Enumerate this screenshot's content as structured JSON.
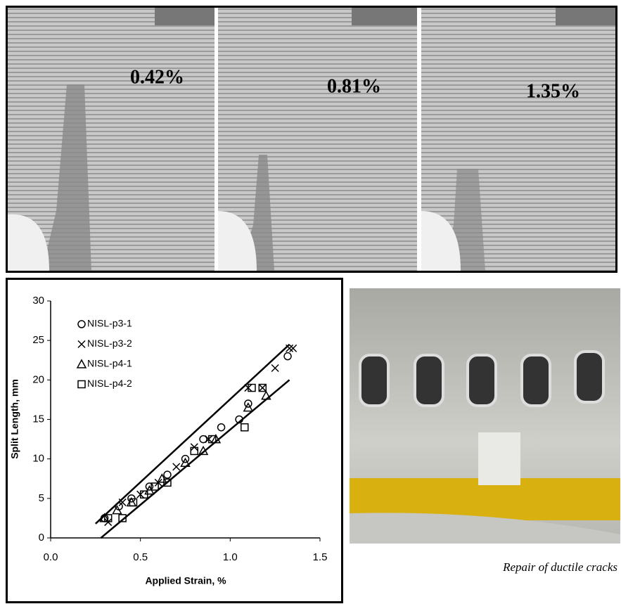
{
  "panels": {
    "labels": [
      "0.42%",
      "0.81%",
      "1.35%"
    ]
  },
  "caption": "Repair of ductile cracks",
  "chart_data": {
    "type": "scatter",
    "xlabel": "Applied Strain, %",
    "ylabel": "Split Length, mm",
    "xlim": [
      0,
      1.5
    ],
    "ylim": [
      0,
      30
    ],
    "xticks": [
      {
        "value": 0,
        "label": "0.0"
      },
      {
        "value": 0.5,
        "label": "0.5"
      },
      {
        "value": 1,
        "label": "1.0"
      },
      {
        "value": 1.5,
        "label": "1.5"
      }
    ],
    "yticks": [
      0,
      5,
      10,
      15,
      20,
      25,
      30
    ],
    "series": [
      {
        "name": "NISL-p3-1",
        "marker": "circle",
        "color": "#000000",
        "x": [
          0.3,
          0.38,
          0.45,
          0.55,
          0.65,
          0.75,
          0.85,
          0.95,
          1.05,
          1.1,
          1.32
        ],
        "values": [
          2.5,
          4,
          5,
          6.5,
          8,
          10,
          12.5,
          14,
          15,
          17,
          23
        ]
      },
      {
        "name": "NISL-p3-2",
        "marker": "cross",
        "color": "#000000",
        "x": [
          0.32,
          0.4,
          0.5,
          0.6,
          0.7,
          0.8,
          0.88,
          1.1,
          1.18,
          1.25,
          1.33,
          1.35
        ],
        "values": [
          2,
          4.5,
          5.5,
          7,
          9,
          11.5,
          12.5,
          19,
          19,
          21.5,
          24,
          24
        ]
      },
      {
        "name": "NISL-p4-1",
        "marker": "triangle",
        "color": "#000000",
        "x": [
          0.3,
          0.37,
          0.45,
          0.55,
          0.62,
          0.75,
          0.85,
          0.92,
          1.1,
          1.2
        ],
        "values": [
          2.5,
          3.5,
          4.5,
          6,
          7.5,
          9.5,
          11,
          12.5,
          16.5,
          18
        ]
      },
      {
        "name": "NISL-p4-2",
        "marker": "square",
        "color": "#000000",
        "x": [
          0.32,
          0.4,
          0.46,
          0.52,
          0.58,
          0.65,
          0.8,
          0.9,
          1.08,
          1.12,
          1.18
        ],
        "values": [
          2.5,
          2.5,
          4.5,
          5.5,
          6.5,
          7,
          11,
          12.5,
          14,
          19,
          19
        ]
      }
    ],
    "fit_lines": [
      {
        "x": [
          0.25,
          1.33
        ],
        "values": [
          1.8,
          24.5
        ]
      },
      {
        "x": [
          0.28,
          1.33
        ],
        "values": [
          0,
          20
        ]
      }
    ]
  }
}
